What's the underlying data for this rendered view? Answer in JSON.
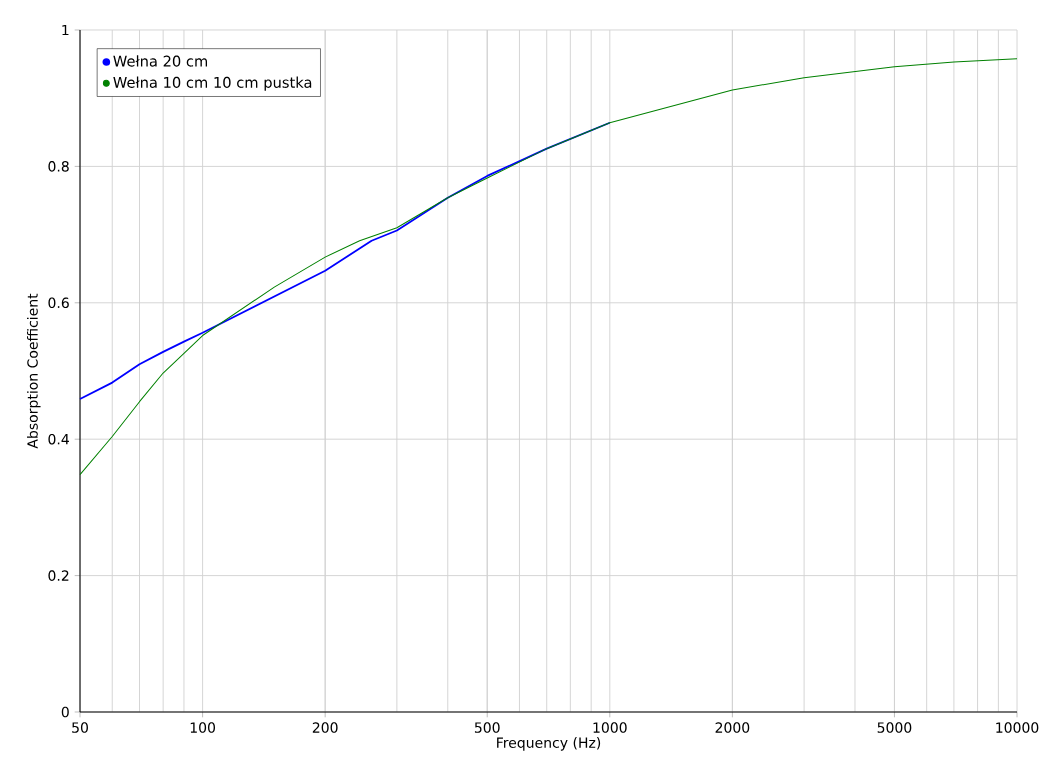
{
  "chart_data": {
    "type": "line",
    "xlabel": "Frequency (Hz)",
    "ylabel": "Absorption Coefficient",
    "log": "x",
    "xlim": [
      50,
      10000
    ],
    "xticks": [
      50,
      100,
      200,
      500,
      1000,
      2000,
      5000,
      10000
    ],
    "ylim": [
      0,
      1
    ],
    "yticks": [
      0,
      0.2,
      0.4,
      0.6,
      0.8,
      1
    ],
    "grid": true,
    "legend": "top left",
    "series": [
      {
        "name": "Wełna 20 cm",
        "color": "#0000ff",
        "x": [
          50,
          60,
          70,
          80,
          90,
          100,
          200,
          260,
          300,
          400,
          500,
          700,
          1000
        ],
        "values": [
          0.459,
          0.483,
          0.51,
          0.528,
          0.543,
          0.556,
          0.647,
          0.691,
          0.706,
          0.754,
          0.786,
          0.826,
          0.864
        ]
      },
      {
        "name": "Wełna 10 cm 10 cm pustka",
        "color": "#008000",
        "x": [
          50,
          60,
          70,
          80,
          90,
          100,
          150,
          200,
          243,
          300,
          400,
          500,
          700,
          1000,
          2000,
          3000,
          5000,
          7000,
          10000
        ],
        "values": [
          0.348,
          0.404,
          0.455,
          0.497,
          0.526,
          0.552,
          0.623,
          0.667,
          0.691,
          0.71,
          0.754,
          0.783,
          0.826,
          0.864,
          0.912,
          0.93,
          0.946,
          0.953,
          0.958
        ]
      }
    ]
  }
}
